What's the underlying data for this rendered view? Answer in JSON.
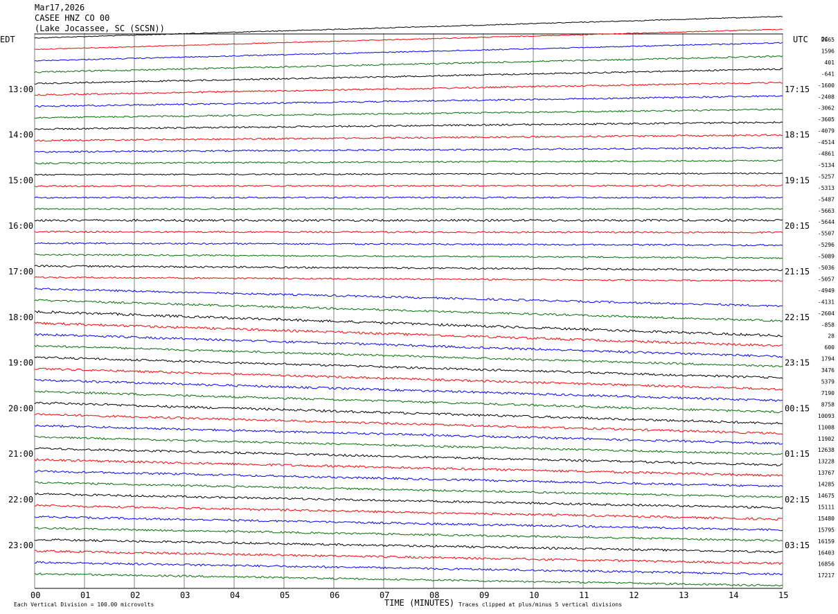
{
  "header": {
    "date": "Mar17,2026",
    "station": "CASEE HNZ CO 00",
    "location": "(Lake Jocassee, SC (SCSN))"
  },
  "labels": {
    "left_tz": "EDT",
    "right_tz": "UTC",
    "dc_label": "DC",
    "xlabel": "TIME (MINUTES)",
    "scale_note": "Each Vertical Division = 100.00 microvolts",
    "clip_note": "Traces clipped at plus/minus 5 vertical divisions"
  },
  "colors": {
    "cycle": [
      "#000000",
      "#ff0000",
      "#0000ff",
      "#007000"
    ],
    "grid": "#808080"
  },
  "chart_data": {
    "type": "line",
    "xlim": [
      0,
      15
    ],
    "x_ticks": [
      "00",
      "01",
      "02",
      "03",
      "04",
      "05",
      "06",
      "07",
      "08",
      "09",
      "10",
      "11",
      "12",
      "13",
      "14",
      "15"
    ],
    "left_hour_labels": [
      "13:00",
      "14:00",
      "15:00",
      "16:00",
      "17:00",
      "18:00",
      "19:00",
      "20:00",
      "21:00",
      "22:00",
      "23:00"
    ],
    "right_hour_labels": [
      "17:15",
      "18:15",
      "19:15",
      "20:15",
      "21:15",
      "22:15",
      "23:15",
      "00:15",
      "01:15",
      "02:15",
      "03:15"
    ],
    "dc_offsets": [
      "2865",
      "1596",
      "401",
      "-641",
      "-1600",
      "-2408",
      "-3062",
      "-3605",
      "-4079",
      "-4514",
      "-4861",
      "-5134",
      "-5257",
      "-5313",
      "-5487",
      "-5663",
      "-5644",
      "-5507",
      "-5296",
      "-5089",
      "-5036",
      "-5057",
      "-4949",
      "-4131",
      "-2604",
      "-858",
      "28",
      "600",
      "1794",
      "3476",
      "5379",
      "7190",
      "8758",
      "10093",
      "11008",
      "11902",
      "12638",
      "13228",
      "13767",
      "14285",
      "14675",
      "15111",
      "15480",
      "15795",
      "16159",
      "16403",
      "16856",
      "17217"
    ],
    "series": [
      {
        "label": "17:15",
        "color": "black",
        "drift": [
          -3.1,
          0.3,
          0.5
        ]
      },
      {
        "label": "",
        "color": "red",
        "drift": [
          -2.9,
          0.29,
          0.5
        ]
      },
      {
        "label": "",
        "color": "blue",
        "drift": [
          -2.6,
          0.32,
          0.6
        ]
      },
      {
        "label": "",
        "color": "green",
        "drift": [
          -2.3,
          0.35,
          0.8
        ]
      },
      {
        "label": "18:15",
        "color": "black",
        "drift": [
          -2.1,
          0.33,
          0.8
        ]
      },
      {
        "label": "",
        "color": "red",
        "drift": [
          -1.8,
          0.4,
          0.8
        ]
      },
      {
        "label": "",
        "color": "blue",
        "drift": [
          -1.5,
          0.4,
          0.8
        ]
      },
      {
        "label": "",
        "color": "green",
        "drift": [
          -1.2,
          0.35,
          0.8
        ]
      },
      {
        "label": "19:15",
        "color": "black",
        "drift": [
          -1.0,
          0.5,
          0.8
        ]
      },
      {
        "label": "",
        "color": "red",
        "drift": [
          -0.8,
          0.5,
          0.8
        ]
      },
      {
        "label": "",
        "color": "blue",
        "drift": [
          -0.6,
          0.3,
          0.9
        ]
      },
      {
        "label": "",
        "color": "green",
        "drift": [
          -0.4,
          0.3,
          0.8
        ]
      },
      {
        "label": "20:15",
        "color": "black",
        "drift": [
          -0.2,
          0.2,
          0.8
        ]
      },
      {
        "label": "",
        "color": "red",
        "drift": [
          -0.1,
          0.2,
          0.9
        ]
      },
      {
        "label": "",
        "color": "blue",
        "drift": [
          0.0,
          0.2,
          0.9
        ]
      },
      {
        "label": "",
        "color": "green",
        "drift": [
          0.0,
          0.2,
          0.8
        ]
      },
      {
        "label": "21:15",
        "color": "black",
        "drift": [
          0.0,
          0.3,
          1.2
        ]
      },
      {
        "label": "",
        "color": "red",
        "drift": [
          0.1,
          0.3,
          0.9
        ]
      },
      {
        "label": "",
        "color": "blue",
        "drift": [
          0.3,
          0.3,
          0.9
        ]
      },
      {
        "label": "",
        "color": "green",
        "drift": [
          0.5,
          0.3,
          0.8
        ]
      },
      {
        "label": "22:15",
        "color": "black",
        "drift": [
          0.6,
          0.3,
          1.0
        ]
      },
      {
        "label": "",
        "color": "red",
        "drift": [
          0.5,
          0.2,
          0.9
        ]
      },
      {
        "label": "",
        "color": "blue",
        "drift": [
          2.5,
          0.4,
          1.0
        ]
      },
      {
        "label": "",
        "color": "green",
        "drift": [
          3.0,
          0.45,
          1.0
        ]
      },
      {
        "label": "23:15",
        "color": "black",
        "drift": [
          3.5,
          0.6,
          1.1
        ]
      },
      {
        "label": "",
        "color": "red",
        "drift": [
          3.3,
          0.55,
          1.1
        ]
      },
      {
        "label": "",
        "color": "blue",
        "drift": [
          3.2,
          0.45,
          1.1
        ]
      },
      {
        "label": "",
        "color": "green",
        "drift": [
          3.0,
          0.4,
          1.0
        ]
      },
      {
        "label": "00:15",
        "color": "black",
        "drift": [
          3.0,
          0.4,
          1.1
        ]
      },
      {
        "label": "",
        "color": "red",
        "drift": [
          3.0,
          0.4,
          1.1
        ]
      },
      {
        "label": "",
        "color": "blue",
        "drift": [
          3.0,
          0.4,
          1.1
        ]
      },
      {
        "label": "",
        "color": "green",
        "drift": [
          3.0,
          0.4,
          1.1
        ]
      },
      {
        "label": "01:15",
        "color": "black",
        "drift": [
          3.0,
          0.4,
          1.2
        ]
      },
      {
        "label": "",
        "color": "red",
        "drift": [
          2.8,
          0.4,
          1.1
        ]
      },
      {
        "label": "",
        "color": "blue",
        "drift": [
          2.6,
          0.35,
          1.1
        ]
      },
      {
        "label": "",
        "color": "green",
        "drift": [
          2.5,
          0.35,
          1.0
        ]
      },
      {
        "label": "02:15",
        "color": "black",
        "drift": [
          2.4,
          0.35,
          1.1
        ]
      },
      {
        "label": "",
        "color": "red",
        "drift": [
          2.3,
          0.4,
          1.2
        ]
      },
      {
        "label": "",
        "color": "blue",
        "drift": [
          2.2,
          0.35,
          1.1
        ]
      },
      {
        "label": "",
        "color": "green",
        "drift": [
          2.1,
          0.35,
          1.0
        ]
      },
      {
        "label": "03:15",
        "color": "black",
        "drift": [
          2.0,
          0.35,
          1.1
        ]
      },
      {
        "label": "",
        "color": "red",
        "drift": [
          2.0,
          0.4,
          1.1
        ]
      },
      {
        "label": "",
        "color": "blue",
        "drift": [
          1.9,
          0.35,
          1.1
        ]
      },
      {
        "label": "",
        "color": "green",
        "drift": [
          1.8,
          0.35,
          1.0
        ]
      },
      {
        "label": "",
        "color": "black",
        "drift": [
          1.8,
          0.35,
          1.1
        ]
      },
      {
        "label": "",
        "color": "red",
        "drift": [
          1.8,
          0.4,
          1.1
        ]
      },
      {
        "label": "",
        "color": "blue",
        "drift": [
          1.7,
          0.35,
          1.1
        ]
      },
      {
        "label": "",
        "color": "green",
        "drift": [
          1.7,
          0.35,
          1.0
        ]
      }
    ]
  }
}
